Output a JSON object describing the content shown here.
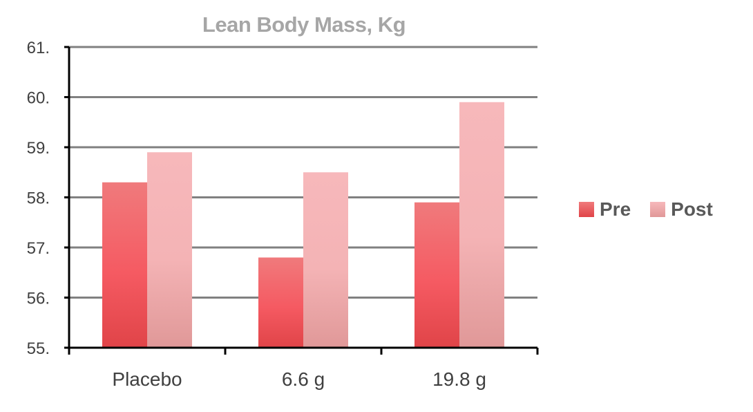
{
  "chart_data": {
    "type": "bar",
    "title": "Lean Body Mass, Kg",
    "xlabel": "",
    "ylabel": "",
    "categories": [
      "Placebo",
      "6.6 g",
      "19.8 g"
    ],
    "series": [
      {
        "name": "Pre",
        "values": [
          58.3,
          56.8,
          57.9
        ]
      },
      {
        "name": "Post",
        "values": [
          58.9,
          58.5,
          59.9
        ]
      }
    ],
    "ylim": [
      55,
      61
    ],
    "yticks": [
      55,
      56,
      57,
      58,
      59,
      60,
      61
    ],
    "ytick_labels": [
      "55.",
      "56.",
      "57.",
      "58.",
      "59.",
      "60.",
      "61."
    ],
    "grid": true,
    "legend_position": "right",
    "colors": {
      "pre_top": "#f07a7c",
      "pre_mid": "#f55a62",
      "pre_bottom": "#e04448",
      "post_top": "#f7b8bb",
      "post_mid": "#f4b3b5",
      "post_bottom": "#e09898",
      "grid": "#808080",
      "axis": "#000000",
      "tick_label": "#404040",
      "title": "#a6a6a6"
    }
  }
}
